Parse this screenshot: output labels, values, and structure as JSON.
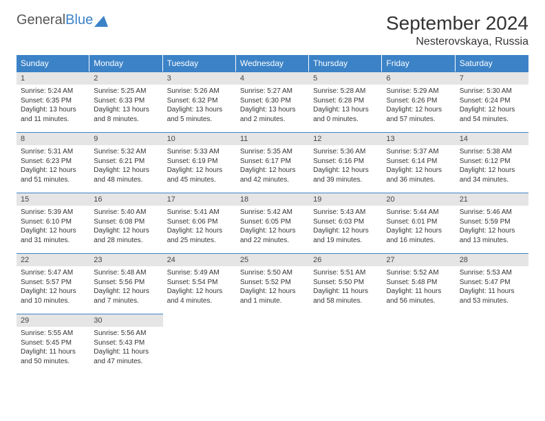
{
  "logo": {
    "text1": "General",
    "text2": "Blue"
  },
  "title": "September 2024",
  "location": "Nesterovskaya, Russia",
  "weekdays": [
    "Sunday",
    "Monday",
    "Tuesday",
    "Wednesday",
    "Thursday",
    "Friday",
    "Saturday"
  ],
  "colors": {
    "header_bg": "#3b82c7",
    "header_text": "#ffffff",
    "daynum_bg": "#e5e5e5",
    "border": "#3b82c7",
    "text": "#333333"
  },
  "weeks": [
    [
      {
        "n": "1",
        "sr": "Sunrise: 5:24 AM",
        "ss": "Sunset: 6:35 PM",
        "d1": "Daylight: 13 hours",
        "d2": "and 11 minutes."
      },
      {
        "n": "2",
        "sr": "Sunrise: 5:25 AM",
        "ss": "Sunset: 6:33 PM",
        "d1": "Daylight: 13 hours",
        "d2": "and 8 minutes."
      },
      {
        "n": "3",
        "sr": "Sunrise: 5:26 AM",
        "ss": "Sunset: 6:32 PM",
        "d1": "Daylight: 13 hours",
        "d2": "and 5 minutes."
      },
      {
        "n": "4",
        "sr": "Sunrise: 5:27 AM",
        "ss": "Sunset: 6:30 PM",
        "d1": "Daylight: 13 hours",
        "d2": "and 2 minutes."
      },
      {
        "n": "5",
        "sr": "Sunrise: 5:28 AM",
        "ss": "Sunset: 6:28 PM",
        "d1": "Daylight: 13 hours",
        "d2": "and 0 minutes."
      },
      {
        "n": "6",
        "sr": "Sunrise: 5:29 AM",
        "ss": "Sunset: 6:26 PM",
        "d1": "Daylight: 12 hours",
        "d2": "and 57 minutes."
      },
      {
        "n": "7",
        "sr": "Sunrise: 5:30 AM",
        "ss": "Sunset: 6:24 PM",
        "d1": "Daylight: 12 hours",
        "d2": "and 54 minutes."
      }
    ],
    [
      {
        "n": "8",
        "sr": "Sunrise: 5:31 AM",
        "ss": "Sunset: 6:23 PM",
        "d1": "Daylight: 12 hours",
        "d2": "and 51 minutes."
      },
      {
        "n": "9",
        "sr": "Sunrise: 5:32 AM",
        "ss": "Sunset: 6:21 PM",
        "d1": "Daylight: 12 hours",
        "d2": "and 48 minutes."
      },
      {
        "n": "10",
        "sr": "Sunrise: 5:33 AM",
        "ss": "Sunset: 6:19 PM",
        "d1": "Daylight: 12 hours",
        "d2": "and 45 minutes."
      },
      {
        "n": "11",
        "sr": "Sunrise: 5:35 AM",
        "ss": "Sunset: 6:17 PM",
        "d1": "Daylight: 12 hours",
        "d2": "and 42 minutes."
      },
      {
        "n": "12",
        "sr": "Sunrise: 5:36 AM",
        "ss": "Sunset: 6:16 PM",
        "d1": "Daylight: 12 hours",
        "d2": "and 39 minutes."
      },
      {
        "n": "13",
        "sr": "Sunrise: 5:37 AM",
        "ss": "Sunset: 6:14 PM",
        "d1": "Daylight: 12 hours",
        "d2": "and 36 minutes."
      },
      {
        "n": "14",
        "sr": "Sunrise: 5:38 AM",
        "ss": "Sunset: 6:12 PM",
        "d1": "Daylight: 12 hours",
        "d2": "and 34 minutes."
      }
    ],
    [
      {
        "n": "15",
        "sr": "Sunrise: 5:39 AM",
        "ss": "Sunset: 6:10 PM",
        "d1": "Daylight: 12 hours",
        "d2": "and 31 minutes."
      },
      {
        "n": "16",
        "sr": "Sunrise: 5:40 AM",
        "ss": "Sunset: 6:08 PM",
        "d1": "Daylight: 12 hours",
        "d2": "and 28 minutes."
      },
      {
        "n": "17",
        "sr": "Sunrise: 5:41 AM",
        "ss": "Sunset: 6:06 PM",
        "d1": "Daylight: 12 hours",
        "d2": "and 25 minutes."
      },
      {
        "n": "18",
        "sr": "Sunrise: 5:42 AM",
        "ss": "Sunset: 6:05 PM",
        "d1": "Daylight: 12 hours",
        "d2": "and 22 minutes."
      },
      {
        "n": "19",
        "sr": "Sunrise: 5:43 AM",
        "ss": "Sunset: 6:03 PM",
        "d1": "Daylight: 12 hours",
        "d2": "and 19 minutes."
      },
      {
        "n": "20",
        "sr": "Sunrise: 5:44 AM",
        "ss": "Sunset: 6:01 PM",
        "d1": "Daylight: 12 hours",
        "d2": "and 16 minutes."
      },
      {
        "n": "21",
        "sr": "Sunrise: 5:46 AM",
        "ss": "Sunset: 5:59 PM",
        "d1": "Daylight: 12 hours",
        "d2": "and 13 minutes."
      }
    ],
    [
      {
        "n": "22",
        "sr": "Sunrise: 5:47 AM",
        "ss": "Sunset: 5:57 PM",
        "d1": "Daylight: 12 hours",
        "d2": "and 10 minutes."
      },
      {
        "n": "23",
        "sr": "Sunrise: 5:48 AM",
        "ss": "Sunset: 5:56 PM",
        "d1": "Daylight: 12 hours",
        "d2": "and 7 minutes."
      },
      {
        "n": "24",
        "sr": "Sunrise: 5:49 AM",
        "ss": "Sunset: 5:54 PM",
        "d1": "Daylight: 12 hours",
        "d2": "and 4 minutes."
      },
      {
        "n": "25",
        "sr": "Sunrise: 5:50 AM",
        "ss": "Sunset: 5:52 PM",
        "d1": "Daylight: 12 hours",
        "d2": "and 1 minute."
      },
      {
        "n": "26",
        "sr": "Sunrise: 5:51 AM",
        "ss": "Sunset: 5:50 PM",
        "d1": "Daylight: 11 hours",
        "d2": "and 58 minutes."
      },
      {
        "n": "27",
        "sr": "Sunrise: 5:52 AM",
        "ss": "Sunset: 5:48 PM",
        "d1": "Daylight: 11 hours",
        "d2": "and 56 minutes."
      },
      {
        "n": "28",
        "sr": "Sunrise: 5:53 AM",
        "ss": "Sunset: 5:47 PM",
        "d1": "Daylight: 11 hours",
        "d2": "and 53 minutes."
      }
    ],
    [
      {
        "n": "29",
        "sr": "Sunrise: 5:55 AM",
        "ss": "Sunset: 5:45 PM",
        "d1": "Daylight: 11 hours",
        "d2": "and 50 minutes."
      },
      {
        "n": "30",
        "sr": "Sunrise: 5:56 AM",
        "ss": "Sunset: 5:43 PM",
        "d1": "Daylight: 11 hours",
        "d2": "and 47 minutes."
      },
      null,
      null,
      null,
      null,
      null
    ]
  ]
}
